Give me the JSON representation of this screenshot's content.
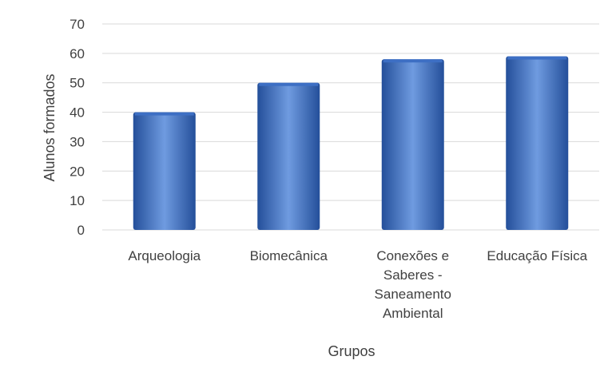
{
  "chart_data": {
    "type": "bar",
    "title": "",
    "categories": [
      [
        "Arqueologia"
      ],
      [
        "Biomecânica"
      ],
      [
        "Conexões e",
        "Saberes -",
        "Saneamento",
        "Ambiental"
      ],
      [
        "Educação Física"
      ]
    ],
    "values": [
      40,
      50,
      58,
      59
    ],
    "xlabel": "Grupos",
    "ylabel": "Alunos formados",
    "ylim": [
      0,
      70
    ],
    "yticks": [
      0,
      10,
      20,
      30,
      40,
      50,
      60,
      70
    ],
    "grid": true,
    "legend": "none",
    "colors": {
      "bar_light": "#6f9be0",
      "bar_mid": "#3d6fc4",
      "bar_dark": "#244f9a",
      "grid": "#d9d9d9",
      "text": "#404040"
    }
  }
}
